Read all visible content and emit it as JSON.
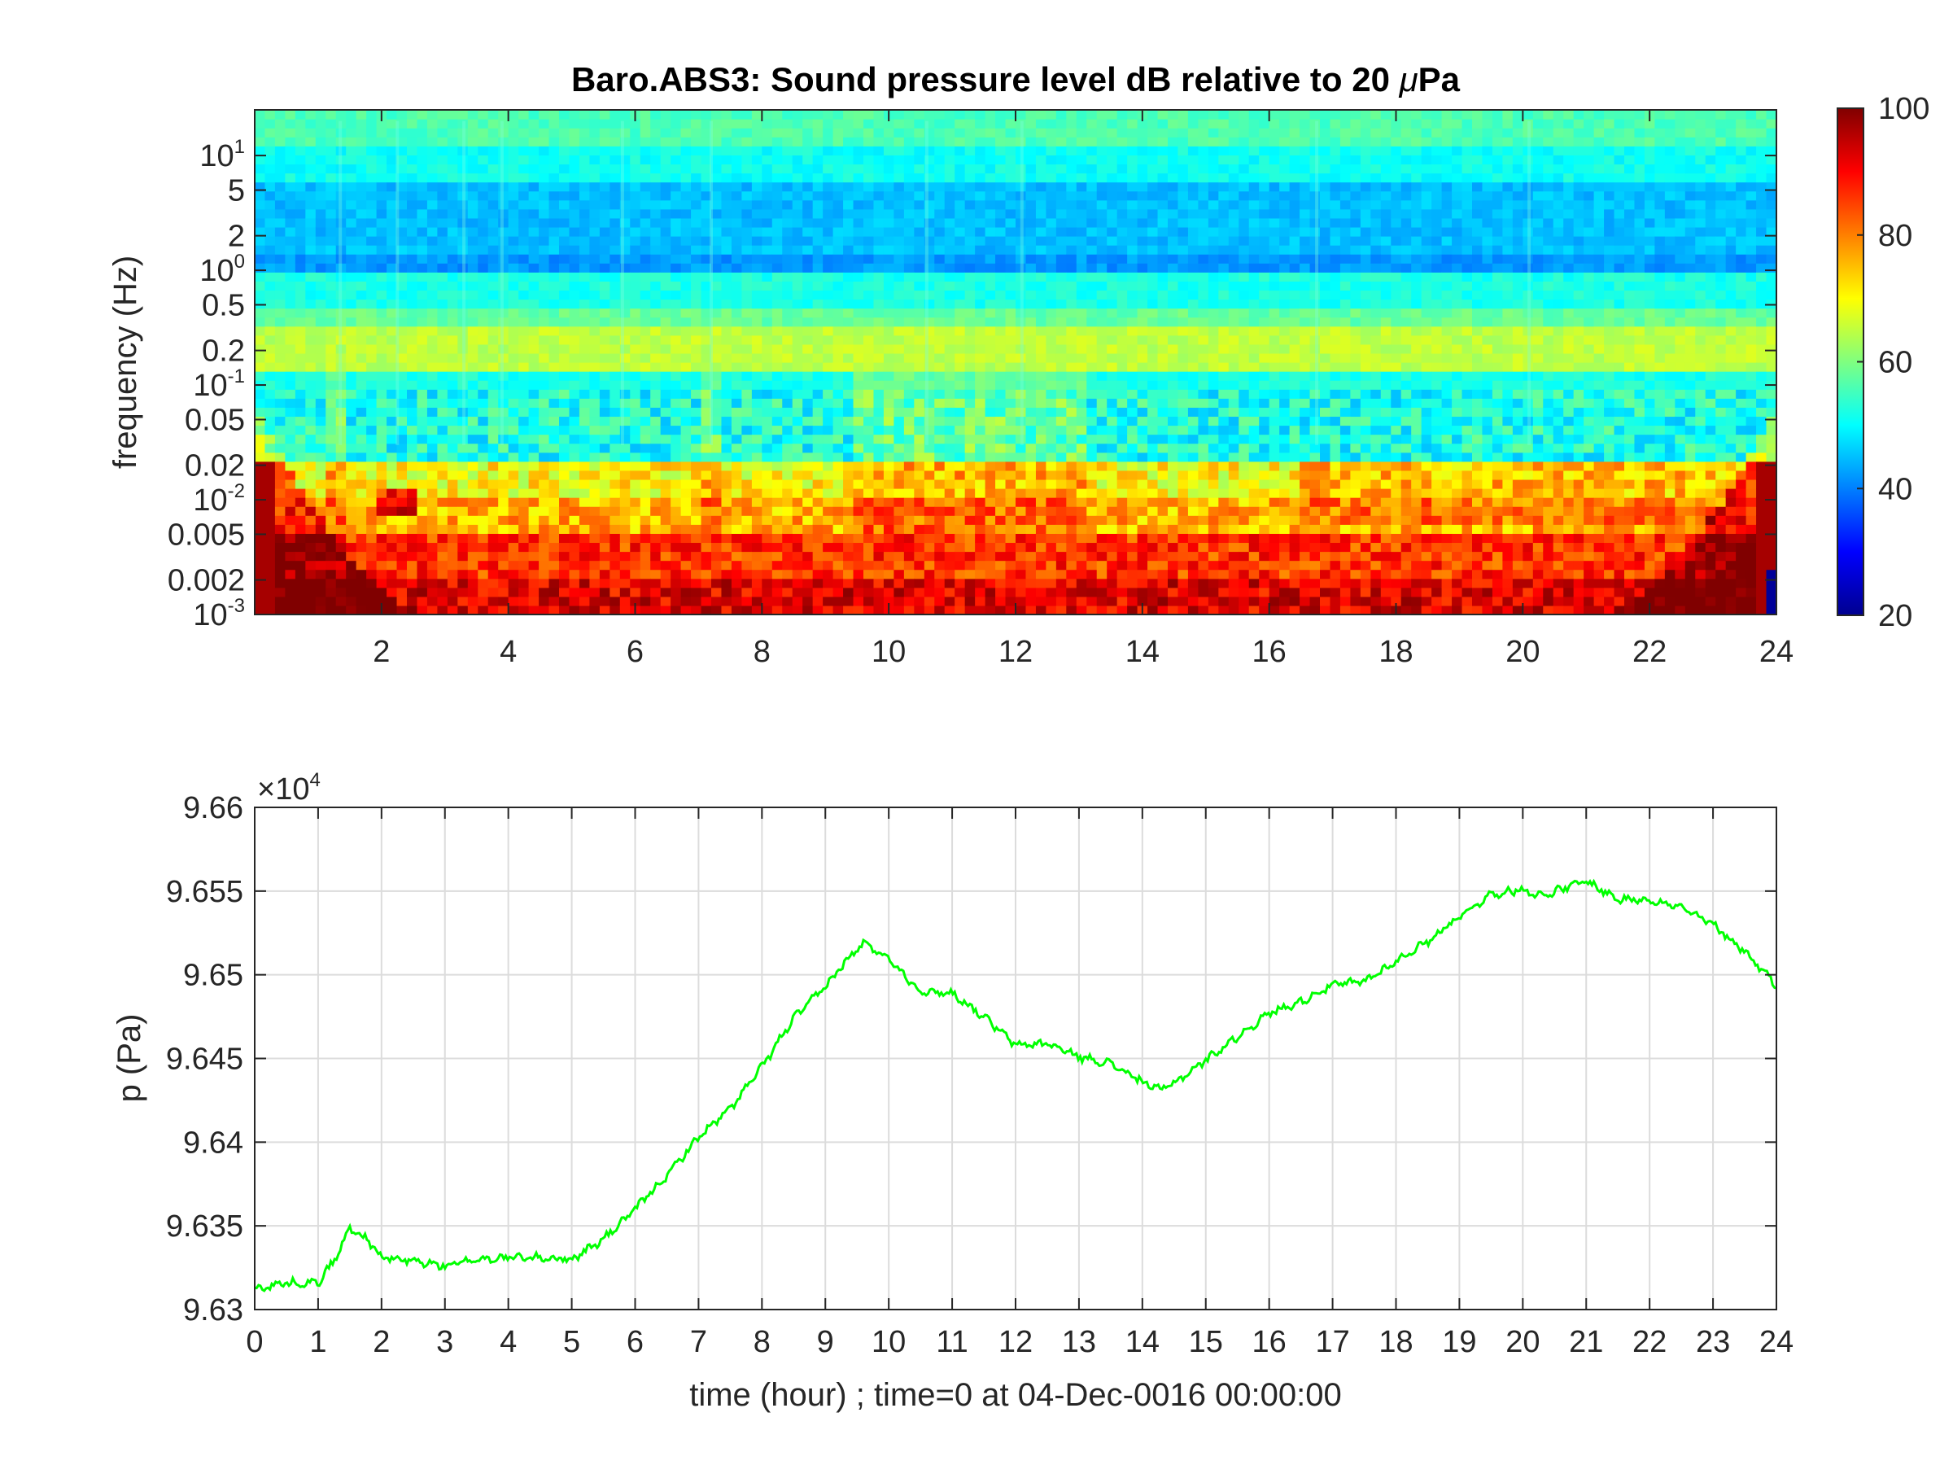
{
  "chart_data": [
    {
      "type": "heatmap",
      "title": "Baro.ABS3: Sound pressure level dB relative to 20 μPa",
      "title_prefix": "Baro.ABS3: Sound pressure level dB relative to 20 ",
      "title_mu": "μ",
      "title_suffix": "Pa",
      "xlabel": "",
      "ylabel": "frequency (Hz)",
      "xlim": [
        0,
        24
      ],
      "ylim": [
        0.001,
        25
      ],
      "yscale": "log",
      "x_ticks": [
        "2",
        "4",
        "6",
        "8",
        "10",
        "12",
        "14",
        "16",
        "18",
        "20",
        "22",
        "24"
      ],
      "y_ticks": [
        {
          "value": 0.001,
          "base": "10",
          "exp": "-3"
        },
        {
          "value": 0.002,
          "label": "0.002"
        },
        {
          "value": 0.005,
          "label": "0.005"
        },
        {
          "value": 0.01,
          "base": "10",
          "exp": "-2"
        },
        {
          "value": 0.02,
          "label": "0.02"
        },
        {
          "value": 0.05,
          "label": "0.05"
        },
        {
          "value": 0.1,
          "base": "10",
          "exp": "-1"
        },
        {
          "value": 0.2,
          "label": "0.2"
        },
        {
          "value": 0.5,
          "label": "0.5"
        },
        {
          "value": 1,
          "base": "10",
          "exp": "0"
        },
        {
          "value": 2,
          "label": "2"
        },
        {
          "value": 5,
          "label": "5"
        },
        {
          "value": 10,
          "base": "10",
          "exp": "1"
        }
      ],
      "colormap": "jet",
      "colorbar": {
        "min": 20,
        "max": 100,
        "ticks": [
          "20",
          "40",
          "60",
          "80",
          "100"
        ]
      },
      "band_levels_db": [
        {
          "f_low": 12,
          "f_high": 25,
          "db": 56
        },
        {
          "f_low": 6,
          "f_high": 12,
          "db": 51
        },
        {
          "f_low": 1.5,
          "f_high": 6,
          "db": 45
        },
        {
          "f_low": 0.9,
          "f_high": 1.5,
          "db": 42
        },
        {
          "f_low": 0.5,
          "f_high": 0.9,
          "db": 52
        },
        {
          "f_low": 0.3,
          "f_high": 0.5,
          "db": 58
        },
        {
          "f_low": 0.13,
          "f_high": 0.3,
          "db": 65
        },
        {
          "f_low": 0.02,
          "f_high": 0.13,
          "db": 52
        },
        {
          "f_low": 0.01,
          "f_high": 0.02,
          "db": 70
        },
        {
          "f_low": 0.005,
          "f_high": 0.01,
          "db": 76
        },
        {
          "f_low": 0.002,
          "f_high": 0.005,
          "db": 86
        },
        {
          "f_low": 0.001,
          "f_high": 0.002,
          "db": 92
        }
      ]
    },
    {
      "type": "line",
      "title": "",
      "xlabel": "time (hour) ; time=0 at 04-Dec-0016 00:00:00",
      "ylabel": "p (Pa)",
      "xlim": [
        0,
        24
      ],
      "ylim": [
        9.63,
        9.66
      ],
      "y_multiplier": {
        "base": "×10",
        "exp": "4"
      },
      "grid": true,
      "x_ticks": [
        "0",
        "1",
        "2",
        "3",
        "4",
        "5",
        "6",
        "7",
        "8",
        "9",
        "10",
        "11",
        "12",
        "13",
        "14",
        "15",
        "16",
        "17",
        "18",
        "19",
        "20",
        "21",
        "22",
        "23",
        "24"
      ],
      "y_ticks": [
        "9.63",
        "9.635",
        "9.64",
        "9.645",
        "9.65",
        "9.655",
        "9.66"
      ],
      "series": [
        {
          "color": "#00ff00",
          "x": [
            0,
            0.5,
            1,
            1.3,
            1.5,
            1.8,
            2,
            2.5,
            3,
            3.5,
            4,
            4.5,
            5,
            5.5,
            6,
            6.5,
            7,
            7.5,
            8,
            8.5,
            9,
            9.3,
            9.6,
            10,
            10.5,
            11,
            11.5,
            12,
            12.5,
            13,
            13.5,
            14,
            14.3,
            14.6,
            15,
            15.5,
            16,
            16.5,
            17,
            17.5,
            18,
            18.5,
            19,
            19.5,
            20,
            20.3,
            20.6,
            21,
            21.5,
            22,
            22.5,
            23,
            23.5,
            24
          ],
          "y": [
            9.6312,
            9.6316,
            9.6316,
            9.6332,
            9.6349,
            9.6341,
            9.6331,
            9.6329,
            9.6326,
            9.633,
            9.6331,
            9.6331,
            9.633,
            9.6342,
            9.636,
            9.638,
            9.6403,
            9.642,
            9.6445,
            9.6474,
            9.6493,
            9.6507,
            9.6519,
            9.651,
            9.649,
            9.6489,
            9.6475,
            9.6458,
            9.6459,
            9.6451,
            9.6447,
            9.6436,
            9.6431,
            9.6438,
            9.6449,
            9.6463,
            9.6477,
            9.6484,
            9.6494,
            9.6496,
            9.6508,
            9.652,
            9.6535,
            9.6548,
            9.6551,
            9.6547,
            9.6551,
            9.6556,
            9.6545,
            9.6545,
            9.654,
            9.653,
            9.6514,
            9.6494
          ]
        }
      ]
    }
  ]
}
